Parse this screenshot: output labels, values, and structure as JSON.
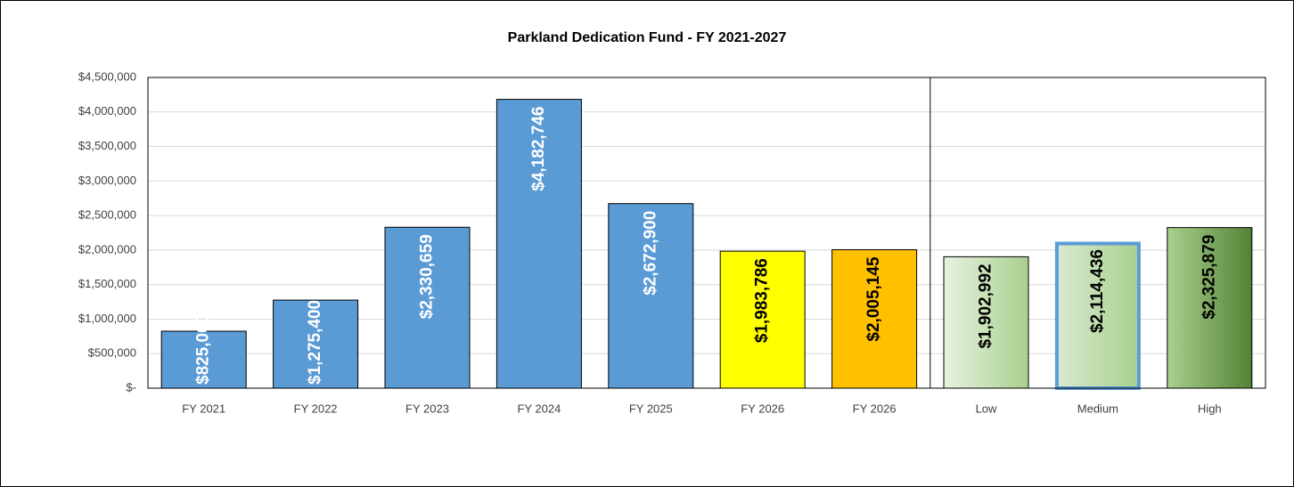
{
  "chart_data": {
    "type": "bar",
    "title": "Parkland Dedication Fund - FY 2021-2027",
    "categories": [
      "FY 2021",
      "FY 2022",
      "FY 2023",
      "FY 2024",
      "FY 2025",
      "FY 2026",
      "FY 2026",
      "Low",
      "Medium",
      "High"
    ],
    "values": [
      825000,
      1275400,
      2330659,
      4182746,
      2672900,
      1983786,
      2005145,
      1902992,
      2114436,
      2325879
    ],
    "value_labels": [
      "$825,000",
      "$1,275,400",
      "$2,330,659",
      "$4,182,746",
      "$2,672,900",
      "$1,983,786",
      "$2,005,145",
      "$1,902,992",
      "$2,114,436",
      "$2,325,879"
    ],
    "colors": [
      "#5b9bd5",
      "#5b9bd5",
      "#5b9bd5",
      "#5b9bd5",
      "#5b9bd5",
      "#ffff00",
      "#ffc000",
      [
        "#e8f2e0",
        "#a9d08e"
      ],
      [
        "#d9ead0",
        "#a9d08e"
      ],
      [
        "#a9d08e",
        "#548235"
      ]
    ],
    "border_colors": [
      "#000000",
      "#000000",
      "#000000",
      "#000000",
      "#000000",
      "#000000",
      "#000000",
      "#000000",
      "#5b9bd5",
      "#000000"
    ],
    "label_colors": [
      "#ffffff",
      "#ffffff",
      "#ffffff",
      "#ffffff",
      "#ffffff",
      "#000000",
      "#000000",
      "#000000",
      "#000000",
      "#000000"
    ],
    "ylim": [
      0,
      4500000
    ],
    "yticks": [
      {
        "value": 0,
        "label": "$-"
      },
      {
        "value": 500000,
        "label": "$500,000"
      },
      {
        "value": 1000000,
        "label": "$1,000,000"
      },
      {
        "value": 1500000,
        "label": "$1,500,000"
      },
      {
        "value": 2000000,
        "label": "$2,000,000"
      },
      {
        "value": 2500000,
        "label": "$2,500,000"
      },
      {
        "value": 3000000,
        "label": "$3,000,000"
      },
      {
        "value": 3500000,
        "label": "$3,500,000"
      },
      {
        "value": 4000000,
        "label": "$4,000,000"
      },
      {
        "value": 4500000,
        "label": "$4,500,000"
      }
    ],
    "grid": true
  }
}
